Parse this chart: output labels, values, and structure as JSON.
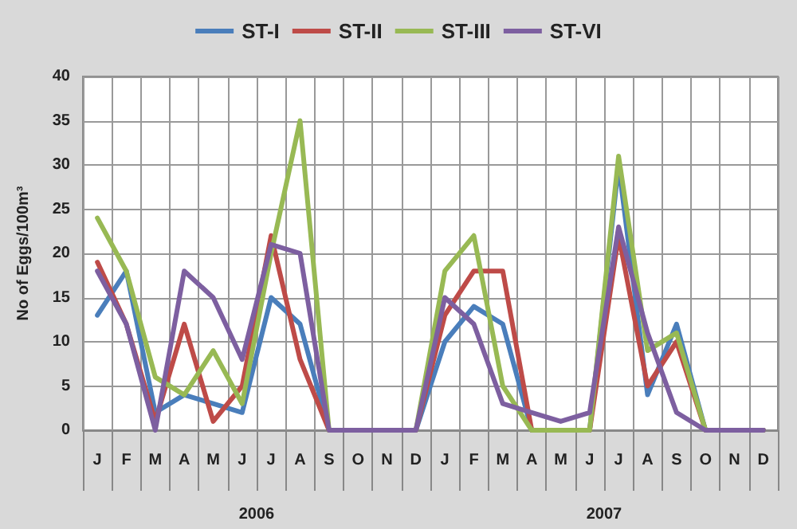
{
  "chart_data": {
    "type": "line",
    "ylabel": "No of Eggs/100m³",
    "categories": [
      "J",
      "F",
      "M",
      "A",
      "M",
      "J",
      "J",
      "A",
      "S",
      "O",
      "N",
      "D",
      "J",
      "F",
      "M",
      "A",
      "M",
      "J",
      "J",
      "A",
      "S",
      "O",
      "N",
      "D"
    ],
    "annotations": [
      "2006",
      "2007"
    ],
    "series": [
      {
        "name": "ST-I",
        "color": "#4a7ebb",
        "values": [
          13,
          18,
          2,
          4,
          3,
          2,
          15,
          12,
          0,
          0,
          0,
          0,
          10,
          14,
          12,
          0,
          0,
          0,
          30,
          4,
          12,
          0,
          0,
          0
        ]
      },
      {
        "name": "ST-II",
        "color": "#be4b48",
        "values": [
          19,
          12,
          1,
          12,
          1,
          5,
          22,
          8,
          0,
          0,
          0,
          0,
          13,
          18,
          18,
          0,
          0,
          0,
          22,
          5,
          10,
          0,
          0,
          0
        ]
      },
      {
        "name": "ST-III",
        "color": "#98b954",
        "values": [
          24,
          18,
          6,
          4,
          9,
          3,
          20,
          35,
          0,
          0,
          0,
          0,
          18,
          22,
          5,
          0,
          0,
          0,
          31,
          9,
          11,
          0,
          0,
          0
        ]
      },
      {
        "name": "ST-VI",
        "color": "#7d5fa0",
        "values": [
          18,
          12,
          0,
          18,
          15,
          8,
          21,
          20,
          0,
          0,
          0,
          0,
          15,
          12,
          3,
          2,
          1,
          2,
          23,
          11,
          2,
          0,
          0,
          0
        ]
      }
    ],
    "ylim": [
      0,
      40
    ],
    "yticks": [
      0,
      5,
      10,
      15,
      20,
      25,
      30,
      35,
      40
    ],
    "grid": true,
    "legend": "top",
    "marker": "none",
    "line_style": "solid"
  }
}
